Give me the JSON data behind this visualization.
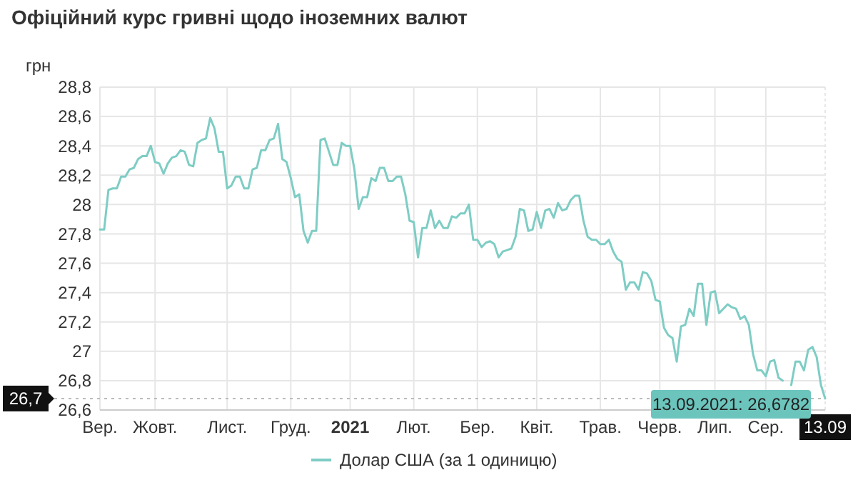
{
  "chart_data": {
    "type": "line",
    "title": "Офіційний курс гривні щодо іноземних валют",
    "ylabel": "грн",
    "ylim": [
      26.6,
      28.8
    ],
    "yticks": [
      {
        "value": 26.6,
        "label": "26,6"
      },
      {
        "value": 26.8,
        "label": "26,8"
      },
      27,
      {
        "value": 27.2,
        "label": "27,2"
      },
      {
        "value": 27.4,
        "label": "27,4"
      },
      {
        "value": 27.6,
        "label": "27,6"
      },
      {
        "value": 27.8,
        "label": "27,8"
      },
      28,
      {
        "value": 28.2,
        "label": "28,2"
      },
      {
        "value": 28.4,
        "label": "28,4"
      },
      {
        "value": 28.6,
        "label": "28,6"
      },
      {
        "value": 28.8,
        "label": "28,8"
      }
    ],
    "categories": [
      "Вер.",
      null,
      null,
      null,
      null,
      null,
      null,
      null,
      null,
      null,
      null,
      null,
      null,
      "Жовт.",
      null,
      null,
      null,
      null,
      null,
      null,
      null,
      null,
      null,
      null,
      null,
      null,
      null,
      null,
      null,
      null,
      "Лист.",
      null,
      null,
      null,
      null,
      null,
      null,
      null,
      null,
      null,
      null,
      null,
      null,
      null,
      null,
      "Груд.",
      null,
      null,
      null,
      null,
      null,
      null,
      null,
      null,
      null,
      null,
      null,
      null,
      null,
      "2021",
      null,
      null,
      null,
      null,
      null,
      null,
      null,
      null,
      null,
      null,
      null,
      null,
      null,
      null,
      "Лют.",
      null,
      null,
      null,
      null,
      null,
      null,
      null,
      null,
      null,
      null,
      null,
      null,
      null,
      null,
      "Бер.",
      null,
      null,
      null,
      null,
      null,
      null,
      null,
      null,
      null,
      null,
      null,
      null,
      null,
      "Квіт.",
      null,
      null,
      null,
      null,
      null,
      null,
      null,
      null,
      null,
      null,
      null,
      null,
      null,
      null,
      "Трав.",
      null,
      null,
      null,
      null,
      null,
      null,
      null,
      null,
      null,
      null,
      null,
      null,
      null,
      "Черв.",
      null,
      null,
      null,
      null,
      null,
      null,
      null,
      null,
      null,
      null,
      null,
      null,
      "Лип.",
      null,
      null,
      null,
      null,
      null,
      null,
      null,
      null,
      null,
      null,
      null,
      "Сер.",
      null,
      null,
      null,
      null,
      null,
      null,
      null,
      null,
      null,
      null,
      null,
      null,
      null,
      "13.09"
    ],
    "grid": true,
    "legend": "bottom",
    "marker": "none",
    "line_style": "solid",
    "series": [
      {
        "name": "Долар США (за 1 одиницю)",
        "color": "#7ecdc4",
        "values": [
          27.83,
          27.83,
          28.1,
          28.11,
          28.11,
          28.19,
          28.19,
          28.24,
          28.25,
          28.31,
          28.33,
          28.33,
          28.4,
          28.29,
          28.28,
          28.21,
          28.28,
          28.32,
          28.33,
          28.37,
          28.36,
          28.27,
          28.26,
          28.42,
          28.44,
          28.45,
          28.59,
          28.52,
          28.36,
          28.36,
          28.11,
          28.13,
          28.19,
          28.19,
          28.11,
          28.11,
          28.24,
          28.25,
          28.37,
          28.37,
          28.44,
          28.45,
          28.55,
          28.31,
          28.29,
          28.18,
          28.05,
          28.07,
          27.82,
          27.74,
          27.82,
          27.82,
          28.44,
          28.45,
          28.36,
          28.27,
          28.27,
          28.42,
          28.4,
          28.4,
          28.24,
          27.97,
          28.05,
          28.05,
          28.18,
          28.16,
          28.25,
          28.25,
          28.16,
          28.16,
          28.19,
          28.19,
          28.07,
          27.89,
          27.88,
          27.64,
          27.84,
          27.84,
          27.96,
          27.84,
          27.89,
          27.84,
          27.84,
          27.92,
          27.91,
          27.94,
          27.94,
          28.0,
          27.76,
          27.76,
          27.71,
          27.74,
          27.75,
          27.73,
          27.64,
          27.68,
          27.69,
          27.7,
          27.78,
          27.97,
          27.96,
          27.82,
          27.83,
          27.95,
          27.84,
          27.96,
          27.97,
          27.91,
          28.01,
          27.96,
          27.97,
          28.03,
          28.06,
          28.06,
          27.89,
          27.78,
          27.76,
          27.76,
          27.73,
          27.73,
          27.76,
          27.68,
          27.63,
          27.61,
          27.42,
          27.47,
          27.47,
          27.42,
          27.54,
          27.53,
          27.48,
          27.35,
          27.34,
          27.16,
          27.11,
          27.09,
          26.93,
          27.17,
          27.18,
          27.29,
          27.24,
          27.46,
          27.46,
          27.18,
          27.4,
          27.41,
          27.26,
          27.29,
          27.32,
          27.3,
          27.29,
          27.22,
          27.24,
          27.18,
          26.98,
          26.87,
          26.87,
          26.83,
          26.93,
          26.94,
          26.82,
          26.8,
          null,
          26.77,
          26.93,
          26.93,
          26.87,
          27.01,
          27.03,
          26.96,
          26.77,
          26.6782
        ]
      }
    ],
    "ref_lines": [
      {
        "axis": "y",
        "value": 26.6782,
        "label": "26,7",
        "line_style": "dotted",
        "color": "#bbbbbb"
      }
    ],
    "annotations": [
      {
        "text": "13.09.2021: 26,6782",
        "x": "13.09",
        "y": 26.6782
      }
    ]
  }
}
